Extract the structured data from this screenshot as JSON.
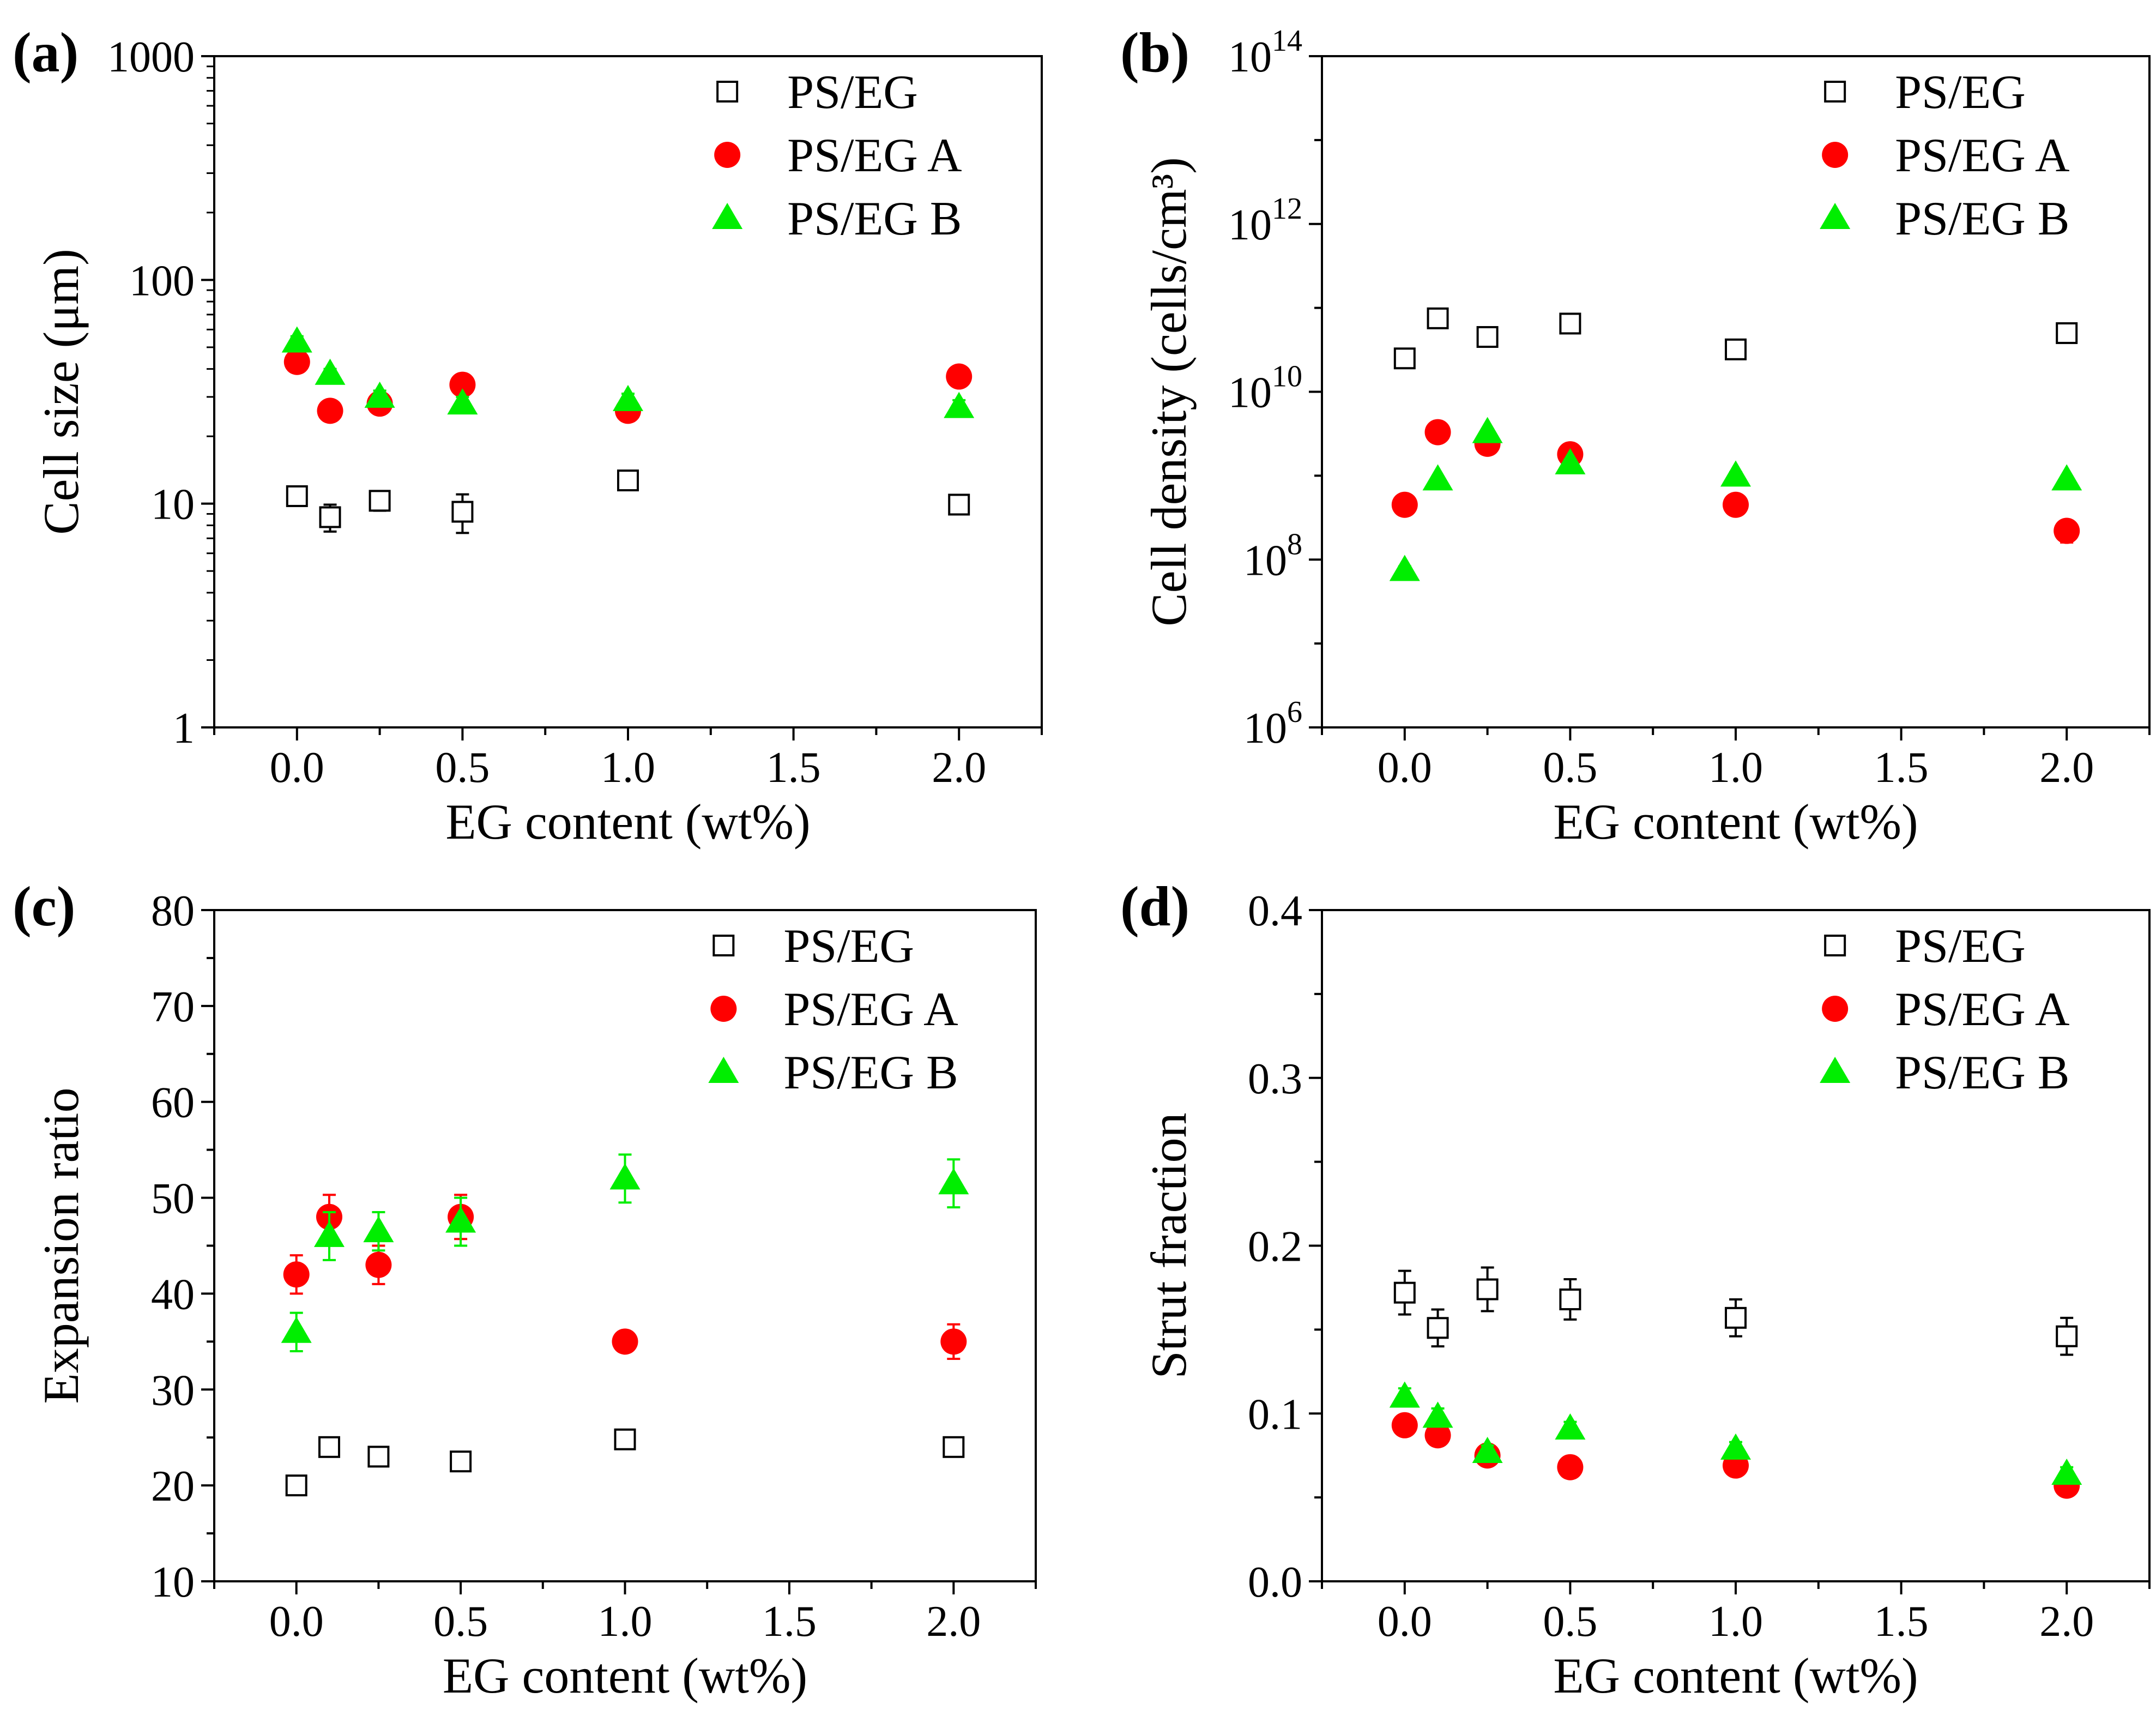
{
  "figure": {
    "colors": {
      "ps_eg": "#000000",
      "ps_eg_a": "#ff0000",
      "ps_eg_b": "#00ee00"
    }
  },
  "chart_data": [
    {
      "panel_label": "(a)",
      "type": "scatter",
      "xlabel": "EG content (wt%)",
      "ylabel": "Cell size (μm)",
      "yscale": "log",
      "xlim": [
        -0.25,
        2.25
      ],
      "ylim": [
        1,
        1000
      ],
      "x_ticks": [
        0.0,
        0.5,
        1.0,
        1.5,
        2.0
      ],
      "x_tick_labels": [
        "0.0",
        "0.5",
        "1.0",
        "1.5",
        "2.0"
      ],
      "y_ticks": [
        1,
        10,
        100,
        1000
      ],
      "y_tick_labels": [
        {
          "base": "1",
          "exp": ""
        },
        {
          "base": "10",
          "exp": ""
        },
        {
          "base": "100",
          "exp": ""
        },
        {
          "base": "1000",
          "exp": ""
        }
      ],
      "legend_position": "top-right",
      "series": [
        {
          "name": "PS/EG",
          "marker": "square-open",
          "x": [
            0,
            0.1,
            0.25,
            0.5,
            1.0,
            2.0
          ],
          "y": [
            10.8,
            8.7,
            10.3,
            9.2,
            12.7,
            9.9
          ],
          "err": [
            1.0,
            1.2,
            1.0,
            1.8,
            0.8,
            0.6
          ]
        },
        {
          "name": "PS/EG A",
          "marker": "circle",
          "x": [
            0,
            0.1,
            0.25,
            0.5,
            1.0,
            2.0
          ],
          "y": [
            43,
            26,
            28,
            34,
            26,
            37
          ],
          "err": [
            3,
            2,
            2,
            2,
            2,
            2
          ]
        },
        {
          "name": "PS/EG B",
          "marker": "triangle",
          "x": [
            0,
            0.1,
            0.25,
            0.5,
            1.0,
            2.0
          ],
          "y": [
            53,
            38,
            30,
            28,
            29,
            27
          ],
          "err": [
            3,
            2,
            2,
            2,
            2,
            2
          ]
        }
      ]
    },
    {
      "panel_label": "(b)",
      "type": "scatter",
      "xlabel": "EG content (wt%)",
      "ylabel": "Cell density (cells/cm³)",
      "yscale": "log",
      "xlim": [
        -0.25,
        2.25
      ],
      "ylim": [
        1000000,
        100000000000000
      ],
      "x_ticks": [
        0.0,
        0.5,
        1.0,
        1.5,
        2.0
      ],
      "x_tick_labels": [
        "0.0",
        "0.5",
        "1.0",
        "1.5",
        "2.0"
      ],
      "y_ticks": [
        1000000,
        100000000,
        10000000000,
        1000000000000,
        100000000000000
      ],
      "y_tick_labels": [
        {
          "base": "10",
          "exp": "6"
        },
        {
          "base": "10",
          "exp": "8"
        },
        {
          "base": "10",
          "exp": "10"
        },
        {
          "base": "10",
          "exp": "12"
        },
        {
          "base": "10",
          "exp": "14"
        }
      ],
      "legend_position": "top-right",
      "series": [
        {
          "name": "PS/EG",
          "marker": "square-open",
          "x": [
            0,
            0.1,
            0.25,
            0.5,
            1.0,
            2.0
          ],
          "y": [
            25000000000,
            75000000000,
            45000000000,
            65000000000,
            32000000000,
            50000000000
          ],
          "err": [
            5000000000,
            15000000000,
            8000000000,
            12000000000,
            6000000000,
            9000000000
          ]
        },
        {
          "name": "PS/EG A",
          "marker": "circle",
          "x": [
            0,
            0.1,
            0.25,
            0.5,
            1.0,
            2.0
          ],
          "y": [
            450000000,
            3300000000,
            2400000000,
            1800000000,
            450000000,
            220000000
          ],
          "err": [
            40000000,
            300000000,
            300000000,
            200000000,
            50000000,
            60000000
          ]
        },
        {
          "name": "PS/EG B",
          "marker": "triangle",
          "x": [
            0,
            0.1,
            0.25,
            0.5,
            1.0,
            2.0
          ],
          "y": [
            75000000,
            900000000,
            3300000000,
            1400000000,
            1000000000,
            900000000
          ],
          "err": [
            8000000,
            80000000,
            300000000,
            150000000,
            100000000,
            80000000
          ]
        }
      ]
    },
    {
      "panel_label": "(c)",
      "type": "scatter",
      "xlabel": "EG content (wt%)",
      "ylabel": "Expansion ratio",
      "yscale": "linear",
      "xlim": [
        -0.25,
        2.25
      ],
      "ylim": [
        10,
        80
      ],
      "x_ticks": [
        0.0,
        0.5,
        1.0,
        1.5,
        2.0
      ],
      "x_tick_labels": [
        "0.0",
        "0.5",
        "1.0",
        "1.5",
        "2.0"
      ],
      "y_ticks": [
        10,
        20,
        30,
        40,
        50,
        60,
        70,
        80
      ],
      "y_tick_labels": [
        {
          "base": "10",
          "exp": ""
        },
        {
          "base": "20",
          "exp": ""
        },
        {
          "base": "30",
          "exp": ""
        },
        {
          "base": "40",
          "exp": ""
        },
        {
          "base": "50",
          "exp": ""
        },
        {
          "base": "60",
          "exp": ""
        },
        {
          "base": "70",
          "exp": ""
        },
        {
          "base": "80",
          "exp": ""
        }
      ],
      "legend_position": "top-right",
      "series": [
        {
          "name": "PS/EG",
          "marker": "square-open",
          "x": [
            0,
            0.1,
            0.25,
            0.5,
            1.0,
            2.0
          ],
          "y": [
            20,
            24,
            23,
            22.5,
            24.8,
            24
          ],
          "err": [
            0.8,
            0.8,
            0.7,
            0.7,
            0.9,
            0.8
          ]
        },
        {
          "name": "PS/EG A",
          "marker": "circle",
          "x": [
            0,
            0.1,
            0.25,
            0.5,
            1.0,
            2.0
          ],
          "y": [
            42,
            48,
            43,
            48,
            35,
            35
          ],
          "err": [
            2,
            2.3,
            2,
            2.3,
            1,
            1.8
          ]
        },
        {
          "name": "PS/EG B",
          "marker": "triangle",
          "x": [
            0,
            0.1,
            0.25,
            0.5,
            1.0,
            2.0
          ],
          "y": [
            36,
            46,
            46.5,
            47.5,
            52,
            51.5
          ],
          "err": [
            2,
            2.5,
            2,
            2.5,
            2.5,
            2.5
          ]
        }
      ]
    },
    {
      "panel_label": "(d)",
      "type": "scatter",
      "xlabel": "EG content (wt%)",
      "ylabel": "Strut fraction",
      "yscale": "linear",
      "xlim": [
        -0.25,
        2.25
      ],
      "ylim": [
        0,
        0.4
      ],
      "x_ticks": [
        0.0,
        0.5,
        1.0,
        1.5,
        2.0
      ],
      "x_tick_labels": [
        "0.0",
        "0.5",
        "1.0",
        "1.5",
        "2.0"
      ],
      "y_ticks": [
        0,
        0.1,
        0.2,
        0.3,
        0.4
      ],
      "y_tick_labels": [
        {
          "base": "0.0",
          "exp": ""
        },
        {
          "base": "0.1",
          "exp": ""
        },
        {
          "base": "0.2",
          "exp": ""
        },
        {
          "base": "0.3",
          "exp": ""
        },
        {
          "base": "0.4",
          "exp": ""
        }
      ],
      "legend_position": "top-right",
      "series": [
        {
          "name": "PS/EG",
          "marker": "square-open",
          "x": [
            0,
            0.1,
            0.25,
            0.5,
            1.0,
            2.0
          ],
          "y": [
            0.172,
            0.151,
            0.174,
            0.168,
            0.157,
            0.146
          ],
          "err": [
            0.013,
            0.011,
            0.013,
            0.012,
            0.011,
            0.011
          ]
        },
        {
          "name": "PS/EG A",
          "marker": "circle",
          "x": [
            0,
            0.1,
            0.25,
            0.5,
            1.0,
            2.0
          ],
          "y": [
            0.093,
            0.087,
            0.075,
            0.068,
            0.069,
            0.057
          ],
          "err": [
            0.005,
            0.005,
            0.004,
            0.003,
            0.004,
            0.004
          ]
        },
        {
          "name": "PS/EG B",
          "marker": "triangle",
          "x": [
            0,
            0.1,
            0.25,
            0.5,
            1.0,
            2.0
          ],
          "y": [
            0.11,
            0.098,
            0.077,
            0.091,
            0.079,
            0.064
          ],
          "err": [
            0.005,
            0.005,
            0.004,
            0.004,
            0.004,
            0.004
          ]
        }
      ]
    }
  ]
}
